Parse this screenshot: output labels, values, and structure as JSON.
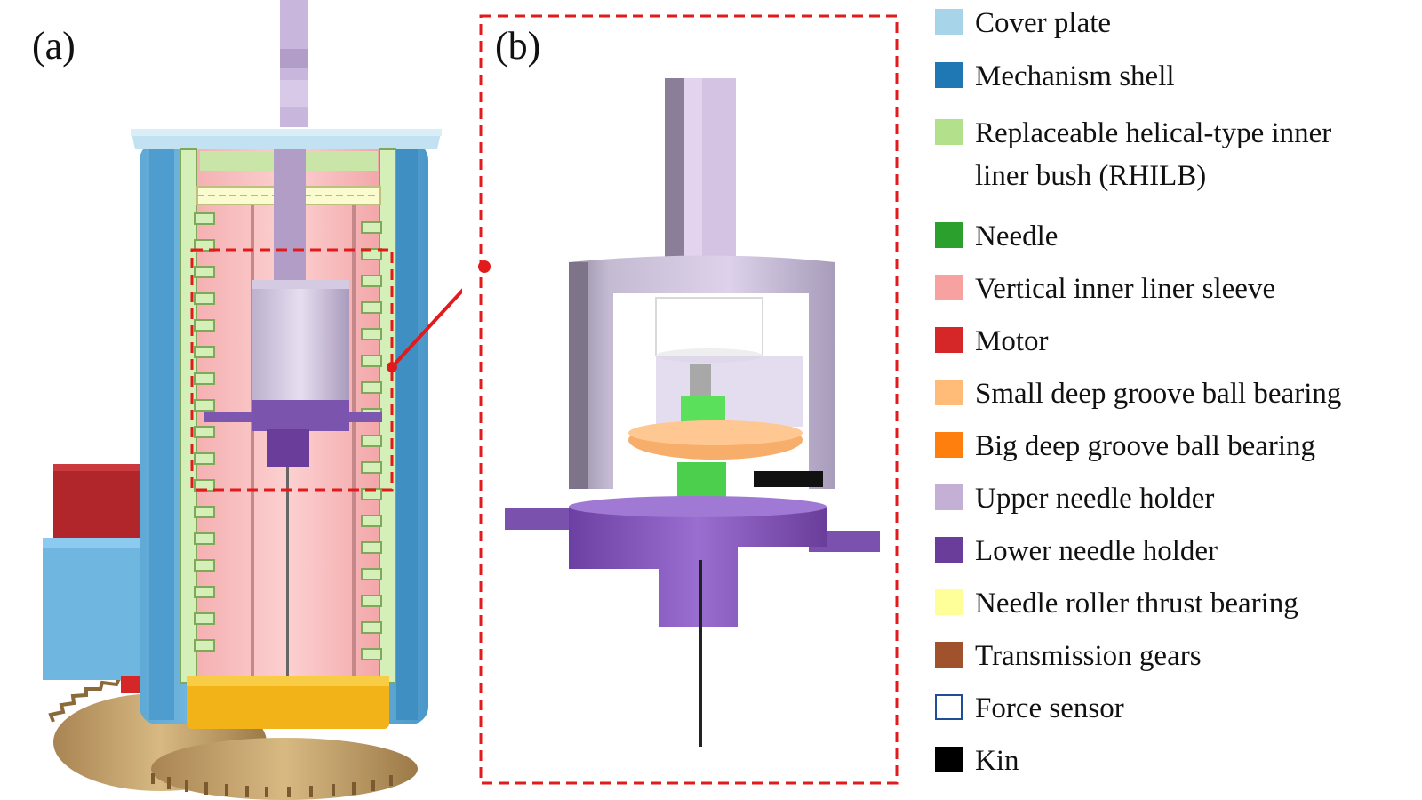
{
  "panels": {
    "a_label": "(a)",
    "b_label": "(b)"
  },
  "colors": {
    "cover_plate": "#a8d4ea",
    "mechanism_shell": "#1f77b4",
    "rhilb": "#b3e08a",
    "needle": "#2ca02c",
    "vertical_sleeve": "#f7a1a1",
    "motor": "#d62728",
    "small_bearing": "#ffbb78",
    "big_bearing": "#ff7f0e",
    "upper_holder": "#c5b0d5",
    "lower_holder": "#6a3d9a",
    "thrust_bearing": "#ffff99",
    "gears": "#a0522d",
    "force_sensor": "#ffffff",
    "kin": "#000000",
    "callout": "#e31a1c"
  },
  "legend": [
    {
      "label": "Cover plate",
      "color": "#a8d4ea",
      "icon": "filled-square"
    },
    {
      "label": "Mechanism shell",
      "color": "#1f77b4",
      "icon": "filled-square"
    },
    {
      "label": "Replaceable helical-type inner",
      "label2": "liner bush (RHILB)",
      "color": "#b3e08a",
      "icon": "filled-square"
    },
    {
      "label": "Needle",
      "color": "#2ca02c",
      "icon": "filled-square"
    },
    {
      "label": "Vertical inner liner sleeve",
      "color": "#f7a1a1",
      "icon": "filled-square"
    },
    {
      "label": "Motor",
      "color": "#d62728",
      "icon": "filled-square"
    },
    {
      "label": "Small deep groove ball bearing",
      "color": "#ffbb78",
      "icon": "filled-square"
    },
    {
      "label": "Big deep groove ball bearing",
      "color": "#ff7f0e",
      "icon": "filled-square"
    },
    {
      "label": "Upper needle holder",
      "color": "#c5b0d5",
      "icon": "filled-square"
    },
    {
      "label": "Lower needle holder",
      "color": "#6a3d9a",
      "icon": "filled-square"
    },
    {
      "label": "Needle roller thrust bearing",
      "color": "#ffff99",
      "icon": "filled-square"
    },
    {
      "label": "Transmission gears",
      "color": "#a0522d",
      "icon": "filled-square"
    },
    {
      "label": "Force sensor",
      "color": "#ffffff",
      "icon": "outlined-square"
    },
    {
      "label": "Kin",
      "color": "#000000",
      "icon": "filled-square"
    }
  ]
}
